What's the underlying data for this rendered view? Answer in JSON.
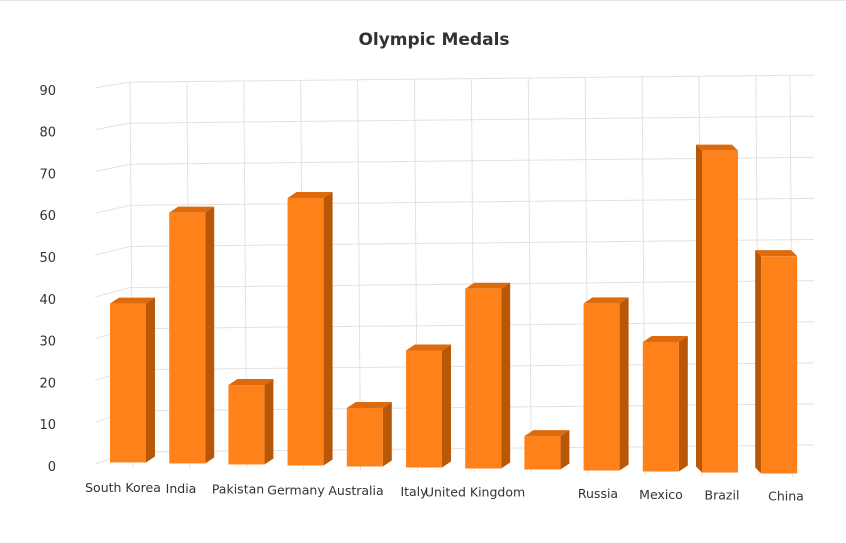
{
  "chart_data": {
    "type": "bar",
    "title": "Olympic Medals",
    "categories": [
      "South Korea",
      "India",
      "Pakistan",
      "Germany",
      "Australia",
      "Italy",
      "United Kingdom",
      "",
      "Russia",
      "Mexico",
      "Brazil",
      "China"
    ],
    "values": [
      38,
      60,
      19,
      64,
      14,
      28,
      43,
      8,
      40,
      31,
      77,
      52
    ],
    "yticks": [
      0,
      10,
      20,
      30,
      40,
      50,
      60,
      70,
      80,
      90
    ],
    "ylim": [
      0,
      90
    ],
    "grid": true,
    "three_d": true,
    "colors": {
      "face": "#ff8119",
      "top": "#dd6a0d",
      "side": "#b85806",
      "grid": "#e2e2e2",
      "text": "#333333"
    }
  }
}
